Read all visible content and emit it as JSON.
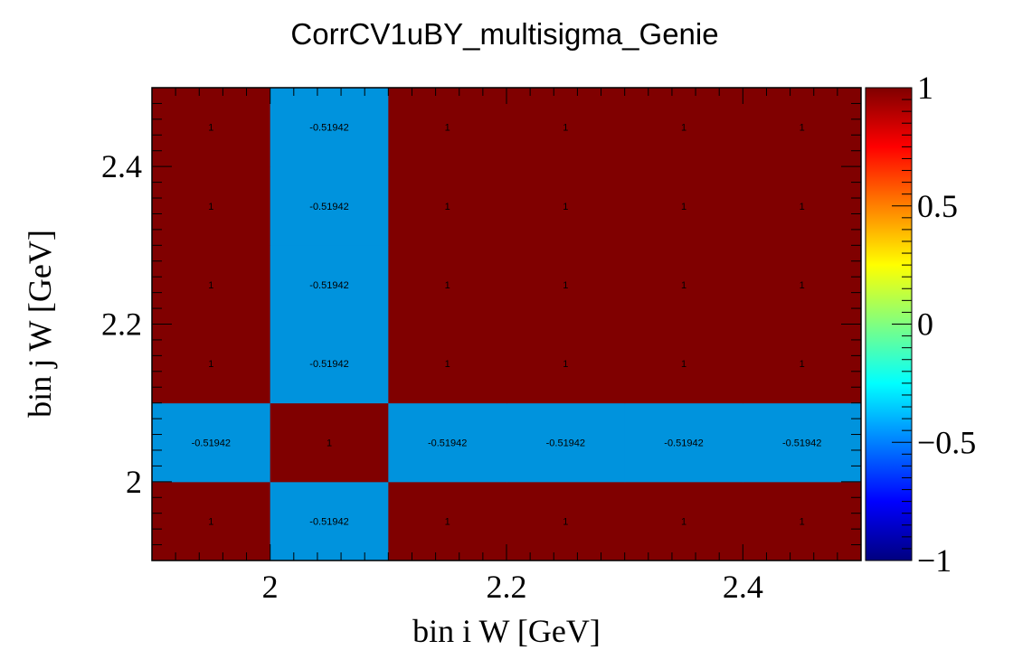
{
  "chart_data": {
    "type": "heatmap",
    "title": "CorrCV1uBY_multisigma_Genie",
    "xlabel": "bin i W [GeV]",
    "ylabel": "bin j W [GeV]",
    "x_edges": [
      1.9,
      2.0,
      2.1,
      2.2,
      2.3,
      2.4,
      2.5
    ],
    "y_edges": [
      1.9,
      2.0,
      2.1,
      2.2,
      2.3,
      2.4,
      2.5
    ],
    "xlim": [
      1.9,
      2.5
    ],
    "ylim": [
      1.9,
      2.5
    ],
    "x_ticks": [
      "2",
      "2.2",
      "2.4"
    ],
    "y_ticks": [
      "2",
      "2.2",
      "2.4"
    ],
    "z_range": [
      -1,
      1
    ],
    "colorbar_ticks": [
      "1",
      "0.5",
      "0",
      "−0.5",
      "−1"
    ],
    "values": [
      [
        1,
        -0.51942,
        1,
        1,
        1,
        1
      ],
      [
        -0.51942,
        1,
        -0.51942,
        -0.51942,
        -0.51942,
        -0.51942
      ],
      [
        1,
        -0.51942,
        1,
        1,
        1,
        1
      ],
      [
        1,
        -0.51942,
        1,
        1,
        1,
        1
      ],
      [
        1,
        -0.51942,
        1,
        1,
        1,
        1
      ],
      [
        1,
        -0.51942,
        1,
        1,
        1,
        1
      ]
    ],
    "cell_labels": [
      [
        "1",
        "-0.51942",
        "1",
        "1",
        "1",
        "1"
      ],
      [
        "-0.51942",
        "1",
        "-0.51942",
        "-0.51942",
        "-0.51942",
        "-0.51942"
      ],
      [
        "1",
        "-0.51942",
        "1",
        "1",
        "1",
        "1"
      ],
      [
        "1",
        "-0.51942",
        "1",
        "1",
        "1",
        "1"
      ],
      [
        "1",
        "-0.51942",
        "1",
        "1",
        "1",
        "1"
      ],
      [
        "1",
        "-0.51942",
        "1",
        "1",
        "1",
        "1"
      ]
    ],
    "colormap": [
      "#00007f",
      "#0000ff",
      "#0080ff",
      "#00ffff",
      "#80ff80",
      "#ffff00",
      "#ff8000",
      "#ff0000",
      "#7f0000"
    ],
    "cell_colors": {
      "1": "#800000",
      "-0.51942": "#0093dd"
    }
  }
}
